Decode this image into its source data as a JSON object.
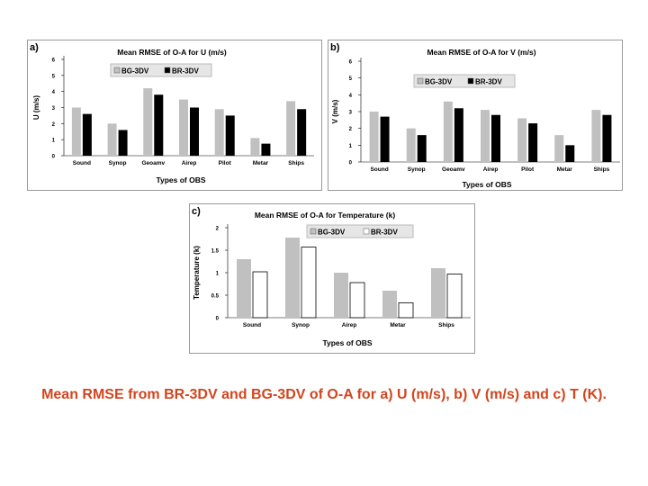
{
  "caption": "Mean RMSE from BR-3DV and BG-3DV of O-A for a) U (m/s), b) V (m/s) and c) T (K).",
  "colors": {
    "bg": "#c0c0c0",
    "br": "#000000",
    "caption": "#d2451e"
  },
  "chart_data": [
    {
      "panel_label": "a)",
      "type": "bar",
      "title": "Mean RMSE of O-A for U (m/s)",
      "xlabel": "Types of OBS",
      "ylabel": "U (m/s)",
      "ylim": [
        0,
        6
      ],
      "ytick_labels": [
        "0",
        "1",
        "2",
        "3",
        "4",
        "5",
        "6"
      ],
      "categories": [
        "Sound",
        "Synop",
        "Geoamv",
        "Airep",
        "Pilot",
        "Metar",
        "Ships"
      ],
      "series": [
        {
          "name": "BG-3DV",
          "values": [
            3.0,
            2.0,
            4.2,
            3.5,
            2.9,
            1.1,
            3.4
          ]
        },
        {
          "name": "BR-3DV",
          "values": [
            2.6,
            1.6,
            3.8,
            3.0,
            2.5,
            0.75,
            2.9
          ]
        }
      ]
    },
    {
      "panel_label": "b)",
      "type": "bar",
      "title": "Mean RMSE of O-A for V (m/s)",
      "xlabel": "Types of OBS",
      "ylabel": "V (m/s)",
      "ylim": [
        0,
        6
      ],
      "ytick_labels": [
        "0",
        "1",
        "2",
        "3",
        "4",
        "5",
        "6"
      ],
      "categories": [
        "Sound",
        "Synop",
        "Geoamv",
        "Airep",
        "Pilot",
        "Metar",
        "Ships"
      ],
      "series": [
        {
          "name": "BG-3DV",
          "values": [
            3.0,
            2.0,
            3.6,
            3.1,
            2.6,
            1.6,
            3.1
          ]
        },
        {
          "name": "BR-3DV",
          "values": [
            2.7,
            1.6,
            3.2,
            2.8,
            2.3,
            1.0,
            2.8
          ]
        }
      ]
    },
    {
      "panel_label": "c)",
      "type": "bar",
      "title": "Mean RMSE of O-A for Temperature (k)",
      "xlabel": "Types of OBS",
      "ylabel": "Temperature (k)",
      "ylim": [
        0,
        2
      ],
      "ytick_labels": [
        "0",
        "0.5",
        "1",
        "1.5",
        "2"
      ],
      "categories": [
        "Sound",
        "Synop",
        "Airep",
        "Metar",
        "Ships"
      ],
      "series": [
        {
          "name": "BG-3DV",
          "values": [
            1.3,
            1.78,
            1.0,
            0.6,
            1.1
          ]
        },
        {
          "name": "BR-3DV",
          "values": [
            1.02,
            1.57,
            0.78,
            0.33,
            0.97
          ]
        }
      ]
    }
  ]
}
